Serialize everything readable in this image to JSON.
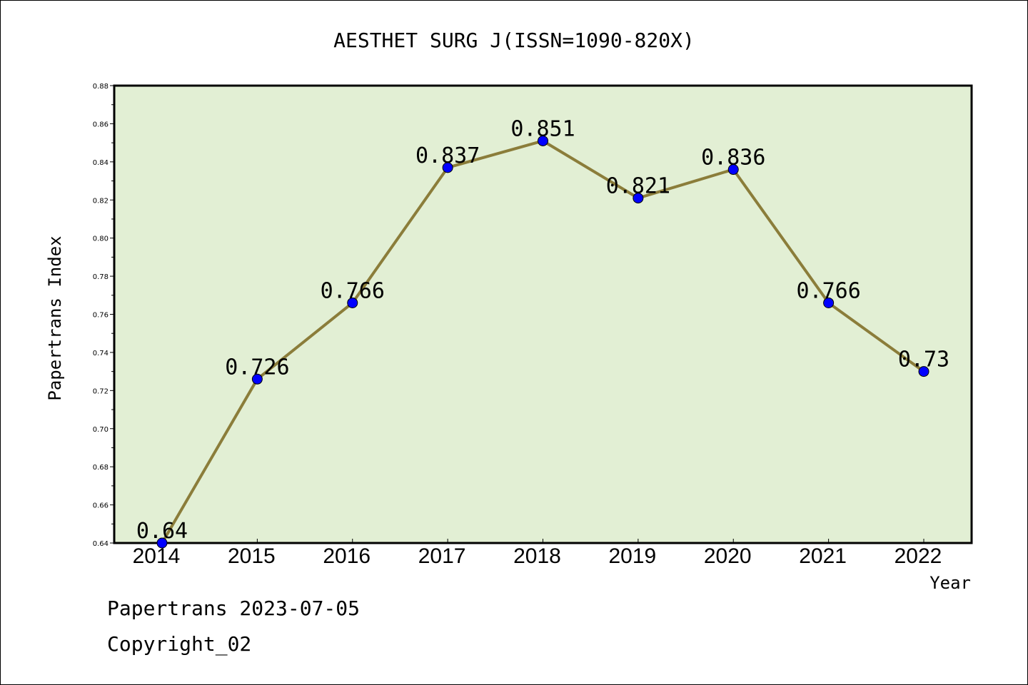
{
  "chart_data": {
    "type": "line",
    "title": "AESTHET SURG J(ISSN=1090-820X)",
    "xlabel": "Year",
    "ylabel": "Papertrans Index",
    "x": [
      "2014",
      "2015",
      "2016",
      "2017",
      "2018",
      "2019",
      "2020",
      "2021",
      "2022"
    ],
    "series": [
      {
        "values": [
          0.64,
          0.726,
          0.766,
          0.837,
          0.851,
          0.821,
          0.836,
          0.766,
          0.73
        ],
        "labels": [
          "0.64",
          "0.726",
          "0.766",
          "0.837",
          "0.851",
          "0.821",
          "0.836",
          "0.766",
          "0.73"
        ]
      }
    ],
    "ylim": [
      0.64,
      0.88
    ],
    "yticks": [
      "0.64",
      "0.66",
      "0.68",
      "0.70",
      "0.72",
      "0.74",
      "0.76",
      "0.78",
      "0.80",
      "0.82",
      "0.84",
      "0.86",
      "0.88"
    ],
    "grid": false,
    "colors": {
      "plot_background": "#e2efd4",
      "line": "#8b7d3a",
      "marker": "#0000ff"
    }
  },
  "footer": {
    "line1": "Papertrans 2023-07-05",
    "line2": "Copyright_02"
  }
}
